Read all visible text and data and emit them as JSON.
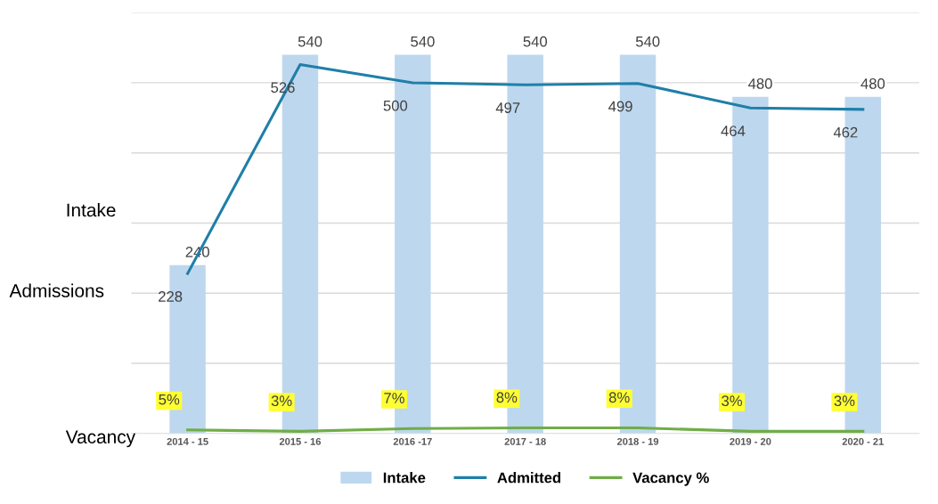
{
  "chart_data": {
    "type": "bar",
    "categories": [
      "2014 - 15",
      "2015 - 16",
      "2016 -17",
      "2017 - 18",
      "2018 - 19",
      "2019 - 20",
      "2020 - 21"
    ],
    "series": [
      {
        "name": "Intake",
        "color": "#bdd7ee",
        "values": [
          240,
          540,
          540,
          540,
          540,
          480,
          480
        ]
      },
      {
        "name": "Admitted",
        "type": "line",
        "color": "#1f7fa8",
        "values": [
          228,
          526,
          500,
          497,
          499,
          464,
          462
        ]
      },
      {
        "name": "Vacancy %",
        "type": "line",
        "color": "#70ad47",
        "values": [
          5,
          3,
          7,
          8,
          8,
          3,
          3
        ],
        "value_labels": [
          "5%",
          "3%",
          "7%",
          "8%",
          "8%",
          "3%",
          "3%"
        ]
      }
    ],
    "ylim": [
      0,
      600
    ],
    "yticks": [
      {
        "value": 100,
        "label": null
      },
      {
        "value": 200,
        "label": null
      },
      {
        "value": 300,
        "label": null
      },
      {
        "value": 400,
        "label": null
      },
      {
        "value": 500,
        "label": null
      },
      {
        "value": 600,
        "label": null
      }
    ],
    "tick_labels": "x",
    "grid": "y",
    "data_labels": true,
    "legend": "bottom",
    "marker": "none",
    "annotations": [
      "Intake",
      "Admissions",
      "Vacancy"
    ]
  }
}
